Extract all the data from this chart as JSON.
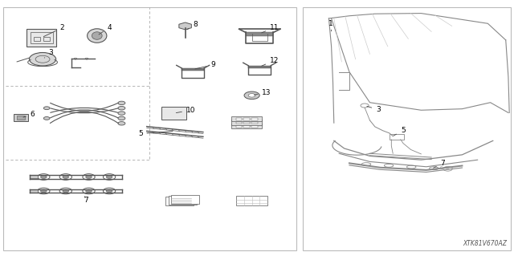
{
  "bg_color": "#ffffff",
  "diagram_color": "#555555",
  "label_color": "#000000",
  "dashed_line_color": "#aaaaaa",
  "part_number_text": "XTK81V670AZ"
}
